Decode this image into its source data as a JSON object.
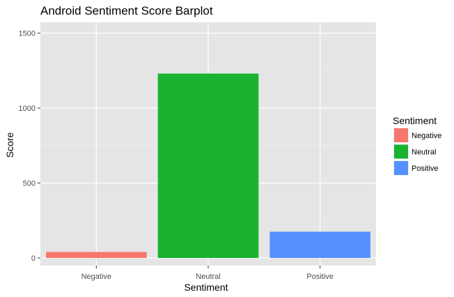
{
  "chart_data": {
    "type": "bar",
    "title": "Android Sentiment Score Barplot",
    "xlabel": "Sentiment",
    "ylabel": "Score",
    "categories": [
      "Negative",
      "Neutral",
      "Positive"
    ],
    "values": [
      40,
      1230,
      175
    ],
    "colors": [
      "#F8766D",
      "#1AB330",
      "#5590FF"
    ],
    "ylim": [
      0,
      1500
    ],
    "yticks": [
      0,
      500,
      1000,
      1500
    ],
    "grid": true,
    "panel_background": "#E5E5E5",
    "legend": {
      "title": "Sentiment",
      "placement": "right",
      "entries": [
        "Negative",
        "Neutral",
        "Positive"
      ]
    }
  }
}
